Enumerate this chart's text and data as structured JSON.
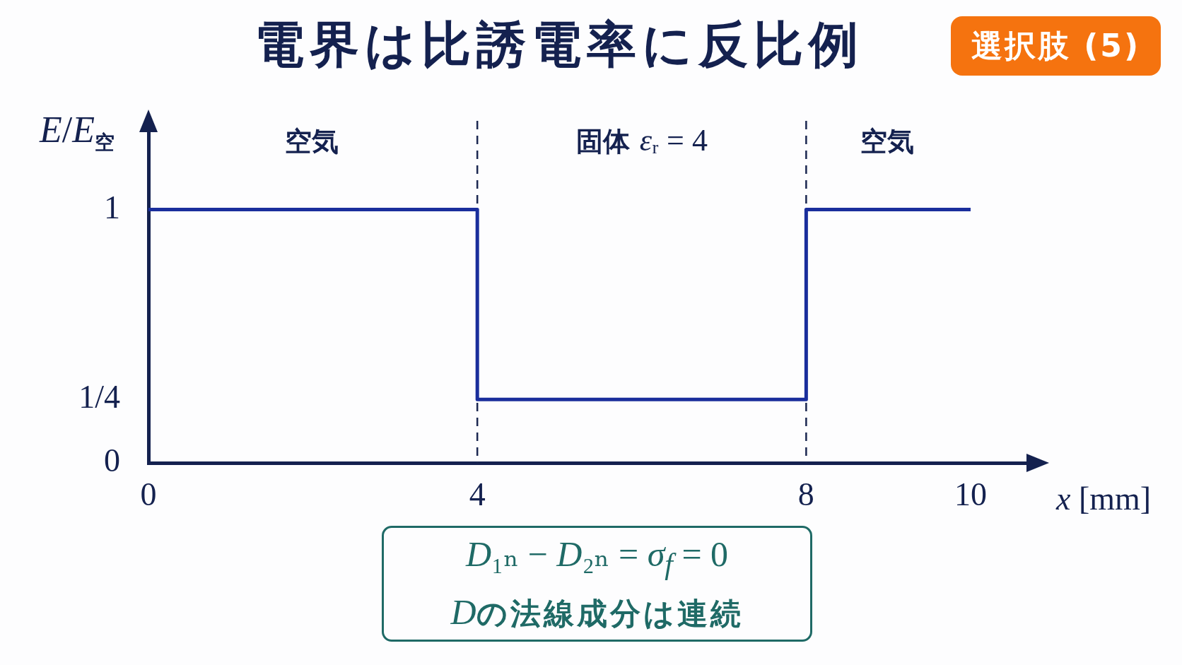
{
  "chart_data": {
    "type": "line",
    "title": "電界は比誘電率に反比例",
    "subtitle": "選択肢 (5)",
    "xlabel": "x [mm]",
    "ylabel": "E/E$_{空}$",
    "x": [
      0,
      4,
      4,
      8,
      8,
      10
    ],
    "values": [
      1,
      1,
      0.25,
      0.25,
      1,
      1
    ],
    "color": "#1a2e9c",
    "xlim": [
      0,
      10.8
    ],
    "xticks": [
      0,
      4,
      8,
      10
    ],
    "ylim": [
      0,
      1.35
    ],
    "yticks": [
      0,
      {
        "value": 0.25,
        "label": "1/4"
      },
      1
    ],
    "ref_lines": [
      {
        "axis": "x",
        "value": 4,
        "color": "#1b2750",
        "line_style": "dashed"
      },
      {
        "axis": "x",
        "value": 8,
        "color": "#1b2750",
        "line_style": "dashed"
      }
    ],
    "annotations": [
      "空気",
      "固体 εᵣ = 4",
      "空気",
      "D₁ₙ − D₂ₙ = σ$_{f}$ = 0",
      "Dの法線成分は連続"
    ]
  }
}
